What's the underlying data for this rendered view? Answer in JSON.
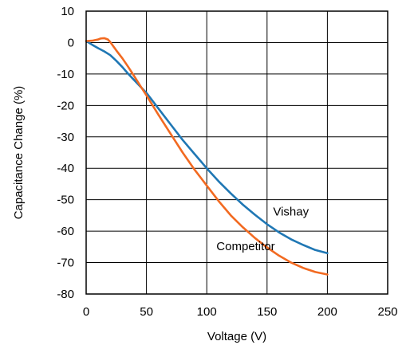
{
  "chart_data": {
    "type": "line",
    "title": "",
    "xlabel": "Voltage (V)",
    "ylabel": "Capacitance Change (%)",
    "xlim": [
      0,
      250
    ],
    "ylim": [
      -80,
      10
    ],
    "x_ticks": [
      0,
      50,
      100,
      150,
      200,
      250
    ],
    "y_ticks": [
      10,
      0,
      -10,
      -20,
      -30,
      -40,
      -50,
      -60,
      -70,
      -80
    ],
    "grid": true,
    "legend": "none",
    "series": [
      {
        "name": "Vishay",
        "color": "#1f77b4",
        "x": [
          0,
          5,
          10,
          15,
          20,
          25,
          30,
          35,
          40,
          45,
          50,
          60,
          70,
          80,
          90,
          100,
          110,
          120,
          130,
          140,
          150,
          160,
          170,
          180,
          190,
          200
        ],
        "y": [
          0.5,
          -0.7,
          -1.8,
          -2.8,
          -4.0,
          -5.8,
          -7.8,
          -10.0,
          -12.0,
          -14.0,
          -16.0,
          -21.0,
          -26.0,
          -31.0,
          -35.5,
          -40.0,
          -44.2,
          -48.0,
          -51.6,
          -54.8,
          -57.8,
          -60.4,
          -62.6,
          -64.4,
          -66.0,
          -67.0
        ]
      },
      {
        "name": "Competitor",
        "color": "#f26a21",
        "x": [
          0,
          5,
          10,
          12,
          15,
          18,
          20,
          25,
          30,
          35,
          40,
          45,
          50,
          60,
          70,
          80,
          90,
          100,
          110,
          120,
          130,
          140,
          150,
          160,
          170,
          180,
          190,
          200
        ],
        "y": [
          0.5,
          0.6,
          1.0,
          1.3,
          1.4,
          1.0,
          0.2,
          -2.5,
          -5.0,
          -7.8,
          -10.8,
          -13.8,
          -16.8,
          -23.0,
          -29.0,
          -35.0,
          -40.5,
          -45.5,
          -50.5,
          -55.0,
          -58.8,
          -62.2,
          -65.2,
          -67.8,
          -70.0,
          -71.7,
          -73.0,
          -73.8
        ]
      }
    ],
    "annotations": [
      {
        "text": "Vishay",
        "x": 155,
        "y": -55
      },
      {
        "text": "Competitor",
        "x": 108,
        "y": -66
      }
    ]
  }
}
